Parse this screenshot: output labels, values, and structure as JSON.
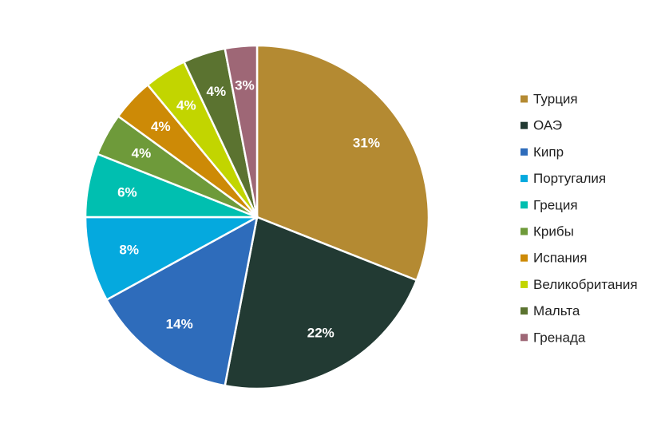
{
  "chart_data": {
    "type": "pie",
    "title": "",
    "legend_position": "right",
    "categories": [
      "Турция",
      "ОАЭ",
      "Кипр",
      "Португалия",
      "Греция",
      "Крибы",
      "Испания",
      "Великобритания",
      "Мальта",
      "Гренада"
    ],
    "values": [
      31,
      22,
      14,
      8,
      6,
      4,
      4,
      4,
      4,
      3
    ],
    "labels": [
      "31%",
      "22%",
      "14%",
      "8%",
      "6%",
      "4%",
      "4%",
      "4%",
      "4%",
      "3%"
    ],
    "colors": [
      "#b48a32",
      "#223a33",
      "#2e6cbb",
      "#05a9de",
      "#00bfb0",
      "#6e9a3a",
      "#cd8a06",
      "#c2d500",
      "#5b7330",
      "#9e6776"
    ]
  }
}
